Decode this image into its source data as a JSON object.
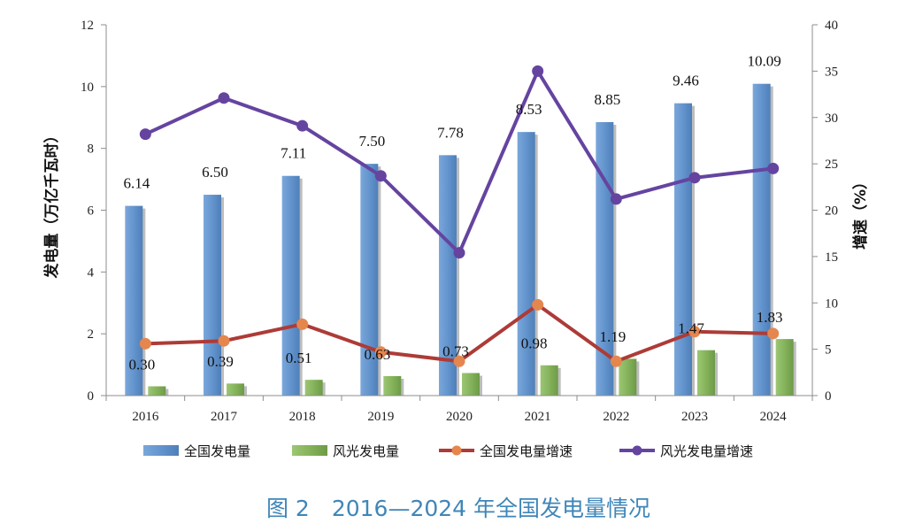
{
  "chart_data": {
    "type": "bar",
    "title": "",
    "caption": "图 2　2016—2024 年全国发电量情况",
    "categories": [
      "2016",
      "2017",
      "2018",
      "2019",
      "2020",
      "2021",
      "2022",
      "2023",
      "2024"
    ],
    "ylabel": "发电量（万亿千瓦时）",
    "y2label": "增速（%）",
    "ylim": [
      0,
      12
    ],
    "yticks": [
      0,
      2,
      4,
      6,
      8,
      10,
      12
    ],
    "y2lim": [
      0,
      40
    ],
    "y2ticks": [
      0,
      5,
      10,
      15,
      20,
      25,
      30,
      35,
      40
    ],
    "grid": false,
    "legend_position": "bottom",
    "series": [
      {
        "name": "全国发电量",
        "kind": "bar",
        "axis": "left",
        "color": "#6a96cb",
        "values": [
          6.14,
          6.5,
          7.11,
          7.5,
          7.78,
          8.53,
          8.85,
          9.46,
          10.09
        ],
        "labels": [
          "6.14",
          "6.50",
          "7.11",
          "7.50",
          "7.78",
          "8.53",
          "8.85",
          "9.46",
          "10.09"
        ]
      },
      {
        "name": "风光发电量",
        "kind": "bar",
        "axis": "left",
        "color": "#8db665",
        "values": [
          0.3,
          0.39,
          0.51,
          0.63,
          0.73,
          0.98,
          1.19,
          1.47,
          1.83
        ],
        "labels": [
          "0.30",
          "0.39",
          "0.51",
          "0.63",
          "0.73",
          "0.98",
          "1.19",
          "1.47",
          "1.83"
        ]
      },
      {
        "name": "全国发电量增速",
        "kind": "line",
        "axis": "right",
        "color": "#ad3b37",
        "marker_color": "#e5864f",
        "values": [
          5.6,
          5.9,
          7.7,
          4.7,
          3.7,
          9.8,
          3.7,
          6.9,
          6.7
        ]
      },
      {
        "name": "风光发电量增速",
        "kind": "line",
        "axis": "right",
        "color": "#6544a0",
        "marker_color": "#6544a0",
        "values": [
          28.2,
          32.1,
          29.1,
          23.7,
          15.4,
          35.0,
          21.2,
          23.5,
          24.5
        ]
      }
    ]
  }
}
